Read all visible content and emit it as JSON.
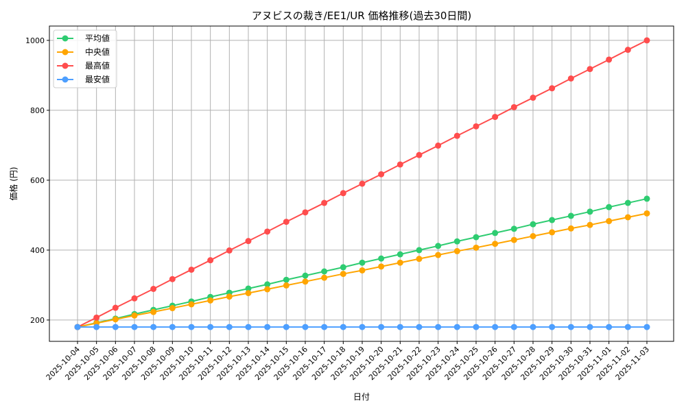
{
  "chart_data": {
    "type": "line",
    "title": "アヌビスの裁き/EE1/UR 価格推移(過去30日間)",
    "xlabel": "日付",
    "ylabel": "価格 (円)",
    "ylim": [
      139,
      1041
    ],
    "yticks": [
      200,
      400,
      600,
      800,
      1000
    ],
    "grid": true,
    "legend_position": "top-left",
    "x": [
      "2025-10-04",
      "2025-10-05",
      "2025-10-06",
      "2025-10-07",
      "2025-10-08",
      "2025-10-09",
      "2025-10-10",
      "2025-10-11",
      "2025-10-12",
      "2025-10-13",
      "2025-10-14",
      "2025-10-15",
      "2025-10-16",
      "2025-10-17",
      "2025-10-18",
      "2025-10-19",
      "2025-10-20",
      "2025-10-21",
      "2025-10-22",
      "2025-10-23",
      "2025-10-24",
      "2025-10-25",
      "2025-10-26",
      "2025-10-27",
      "2025-10-28",
      "2025-10-29",
      "2025-10-30",
      "2025-10-31",
      "2025-11-01",
      "2025-11-02",
      "2025-11-03"
    ],
    "series": [
      {
        "name": "平均値",
        "color": "#2ecc71",
        "values": [
          180,
          192,
          204,
          217,
          229,
          241,
          253,
          266,
          278,
          290,
          302,
          315,
          327,
          339,
          351,
          364,
          376,
          388,
          400,
          412,
          425,
          437,
          449,
          461,
          474,
          486,
          498,
          510,
          523,
          535,
          547
        ]
      },
      {
        "name": "中央値",
        "color": "#ffa500",
        "values": [
          180,
          191,
          202,
          213,
          223,
          234,
          245,
          256,
          267,
          277,
          288,
          299,
          310,
          321,
          332,
          342,
          353,
          364,
          375,
          386,
          397,
          407,
          418,
          429,
          440,
          451,
          462,
          472,
          483,
          494,
          505
        ]
      },
      {
        "name": "最高値",
        "color": "#ff4d4d",
        "values": [
          180,
          207,
          235,
          262,
          289,
          317,
          344,
          371,
          399,
          426,
          453,
          481,
          508,
          535,
          563,
          590,
          617,
          645,
          672,
          699,
          727,
          754,
          781,
          809,
          836,
          863,
          891,
          918,
          945,
          973,
          1000
        ]
      },
      {
        "name": "最安値",
        "color": "#4d9fff",
        "values": [
          180,
          180,
          180,
          180,
          180,
          180,
          180,
          180,
          180,
          180,
          180,
          180,
          180,
          180,
          180,
          180,
          180,
          180,
          180,
          180,
          180,
          180,
          180,
          180,
          180,
          180,
          180,
          180,
          180,
          180,
          180
        ]
      }
    ]
  }
}
